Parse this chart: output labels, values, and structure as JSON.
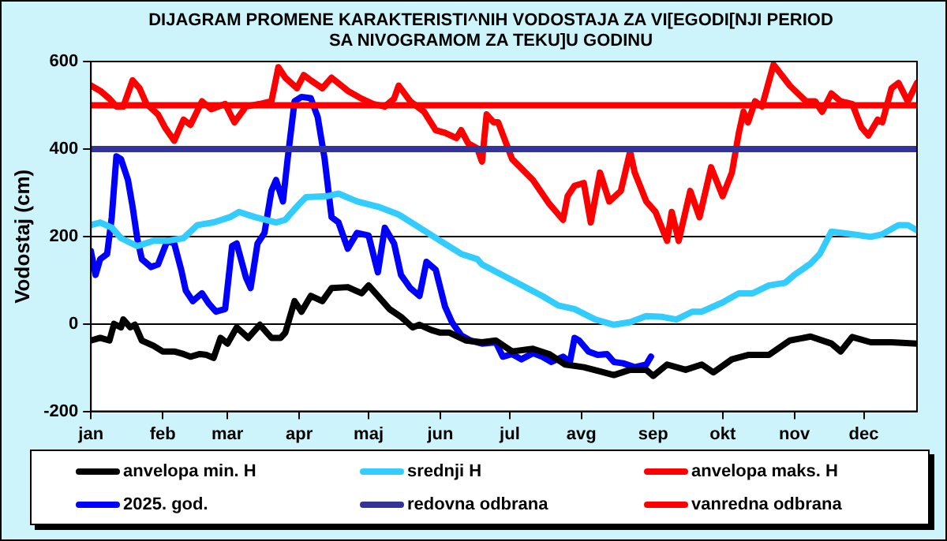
{
  "chart_data": {
    "type": "line",
    "title": "DIJAGRAM PROMENE  KARAKTERISTI^NIH  VODOSTAJA ZA VI[EGODI[NJI PERIOD  SA NIVOGRAMOM ZA TEKU]U  GODINU",
    "ylabel": "Vodostaj (cm)",
    "xlim": [
      "--01-01",
      "--12-24"
    ],
    "xticks": [
      {
        "value": "--01-01",
        "label": "jan"
      },
      {
        "value": "--02-01",
        "label": "feb"
      },
      {
        "value": "--03-01",
        "label": "mar"
      },
      {
        "value": "--04-01",
        "label": "apr"
      },
      {
        "value": "--05-01",
        "label": "maj"
      },
      {
        "value": "--06-01",
        "label": "jun"
      },
      {
        "value": "--07-01",
        "label": "jul"
      },
      {
        "value": "--08-01",
        "label": "avg"
      },
      {
        "value": "--09-01",
        "label": "sep"
      },
      {
        "value": "--10-01",
        "label": "okt"
      },
      {
        "value": "--11-01",
        "label": "nov"
      },
      {
        "value": "--12-01",
        "label": "dec"
      }
    ],
    "ylim": [
      -200,
      600
    ],
    "yticks": [
      -200,
      0,
      200,
      400,
      600
    ],
    "grid": "y",
    "legend": "bottom",
    "marker": "none",
    "line_style": "solid",
    "series": [
      {
        "name": "anvelopa min. H",
        "color": "#000000",
        "x": [
          "--01-01",
          "--01-05",
          "--01-09",
          "--01-11",
          "--01-14",
          "--01-15",
          "--01-18",
          "--01-20",
          "--01-23",
          "--01-28",
          "--02-01",
          "--02-06",
          "--02-10",
          "--02-13",
          "--02-17",
          "--02-20",
          "--02-23",
          "--02-26",
          "--03-01",
          "--03-05",
          "--03-10",
          "--03-15",
          "--03-20",
          "--03-24",
          "--03-26",
          "--03-30",
          "--04-02",
          "--04-06",
          "--04-11",
          "--04-15",
          "--04-22",
          "--04-28",
          "--05-01",
          "--05-05",
          "--05-10",
          "--05-15",
          "--05-20",
          "--05-23",
          "--05-28",
          "--06-01",
          "--06-05",
          "--06-12",
          "--06-19",
          "--06-25",
          "--07-02",
          "--07-11",
          "--07-18",
          "--07-25",
          "--08-02",
          "--08-15",
          "--08-22",
          "--08-29",
          "--09-01",
          "--09-07",
          "--09-15",
          "--09-22",
          "--09-27",
          "--10-05",
          "--10-12",
          "--10-21",
          "--10-30",
          "--11-08",
          "--11-17",
          "--11-21",
          "--11-26",
          "--12-04",
          "--12-13",
          "--12-24"
        ],
        "values": [
          -38,
          -32,
          -38,
          0,
          -8,
          10,
          -8,
          -2,
          -38,
          -50,
          -63,
          -63,
          -69,
          -75,
          -69,
          -71,
          -78,
          -32,
          -45,
          -8,
          -32,
          -2,
          -32,
          -32,
          -20,
          52,
          28,
          64,
          52,
          82,
          84,
          70,
          88,
          64,
          34,
          16,
          -8,
          -2,
          -14,
          -20,
          -20,
          -38,
          -42,
          -38,
          -63,
          -57,
          -69,
          -93,
          -99,
          -117,
          -105,
          -105,
          -119,
          -93,
          -105,
          -93,
          -111,
          -81,
          -71,
          -71,
          -38,
          -29,
          -45,
          -63,
          -30,
          -42,
          -42,
          -45
        ]
      },
      {
        "name": "srednji H",
        "color": "#33ccff",
        "x": [
          "--01-01",
          "--01-05",
          "--01-10",
          "--01-14",
          "--01-21",
          "--01-28",
          "--02-03",
          "--02-10",
          "--02-16",
          "--02-23",
          "--03-02",
          "--03-06",
          "--03-13",
          "--03-22",
          "--03-26",
          "--04-01",
          "--04-04",
          "--04-13",
          "--04-18",
          "--04-26",
          "--05-05",
          "--05-14",
          "--05-23",
          "--06-01",
          "--06-10",
          "--06-17",
          "--06-19",
          "--07-02",
          "--07-15",
          "--07-22",
          "--07-29",
          "--08-07",
          "--08-15",
          "--08-22",
          "--08-29",
          "--09-05",
          "--09-11",
          "--09-18",
          "--09-22",
          "--10-01",
          "--10-08",
          "--10-14",
          "--10-21",
          "--10-28",
          "--11-01",
          "--11-08",
          "--11-12",
          "--11-17",
          "--11-26",
          "--12-04",
          "--12-09",
          "--12-16",
          "--12-20",
          "--12-24"
        ],
        "values": [
          226,
          232,
          220,
          196,
          178,
          190,
          190,
          196,
          226,
          232,
          244,
          256,
          244,
          232,
          238,
          274,
          290,
          292,
          298,
          280,
          268,
          250,
          220,
          190,
          160,
          148,
          136,
          100,
          64,
          42,
          34,
          10,
          -2,
          4,
          18,
          16,
          10,
          28,
          28,
          49,
          70,
          70,
          88,
          94,
          112,
          138,
          160,
          211,
          205,
          199,
          205,
          226,
          226,
          214
        ]
      },
      {
        "name": "anvelopa maks. H",
        "color": "#ff0000",
        "x": [
          "--01-01",
          "--01-05",
          "--01-09",
          "--01-12",
          "--01-15",
          "--01-19",
          "--01-22",
          "--01-25",
          "--01-30",
          "--02-02",
          "--02-06",
          "--02-10",
          "--02-13",
          "--02-18",
          "--02-22",
          "--02-28",
          "--03-04",
          "--03-09",
          "--03-15",
          "--03-20",
          "--03-23",
          "--03-26",
          "--03-31",
          "--04-03",
          "--04-06",
          "--04-11",
          "--04-15",
          "--04-22",
          "--04-28",
          "--05-03",
          "--05-08",
          "--05-12",
          "--05-14",
          "--05-19",
          "--05-25",
          "--05-30",
          "--06-03",
          "--06-08",
          "--06-10",
          "--06-13",
          "--06-17",
          "--06-19",
          "--06-21",
          "--06-24",
          "--06-26",
          "--07-02",
          "--07-11",
          "--07-18",
          "--07-24",
          "--07-26",
          "--07-29",
          "--08-02",
          "--08-05",
          "--08-09",
          "--08-13",
          "--08-18",
          "--08-22",
          "--08-24",
          "--08-29",
          "--09-02",
          "--09-07",
          "--09-09",
          "--09-12",
          "--09-17",
          "--09-21",
          "--09-26",
          "--10-01",
          "--10-05",
          "--10-08",
          "--10-10",
          "--10-12",
          "--10-15",
          "--10-18",
          "--10-23",
          "--10-30",
          "--11-06",
          "--11-10",
          "--11-13",
          "--11-17",
          "--11-21",
          "--11-26",
          "--11-30",
          "--12-03",
          "--12-07",
          "--12-09",
          "--12-13",
          "--12-16",
          "--12-20",
          "--12-24"
        ],
        "values": [
          545,
          533,
          515,
          497,
          497,
          557,
          539,
          503,
          479,
          449,
          419,
          467,
          455,
          509,
          491,
          503,
          461,
          497,
          503,
          509,
          587,
          563,
          539,
          569,
          557,
          539,
          563,
          533,
          515,
          503,
          497,
          515,
          545,
          509,
          485,
          443,
          437,
          425,
          443,
          413,
          401,
          371,
          479,
          461,
          461,
          377,
          329,
          275,
          238,
          292,
          316,
          322,
          232,
          346,
          280,
          304,
          394,
          346,
          280,
          256,
          190,
          256,
          190,
          304,
          244,
          358,
          292,
          346,
          437,
          485,
          461,
          509,
          497,
          593,
          545,
          509,
          509,
          485,
          527,
          509,
          503,
          449,
          431,
          467,
          461,
          539,
          551,
          509,
          551
        ]
      },
      {
        "name": "2025. god.",
        "color": "#0000ff",
        "x": [
          "--01-01",
          "--01-03",
          "--01-05",
          "--01-08",
          "--01-10",
          "--01-12",
          "--01-14",
          "--01-17",
          "--01-19",
          "--01-21",
          "--01-23",
          "--01-27",
          "--01-30",
          "--02-03",
          "--02-06",
          "--02-09",
          "--02-11",
          "--02-14",
          "--02-18",
          "--02-21",
          "--02-24",
          "--02-28",
          "--03-03",
          "--03-05",
          "--03-09",
          "--03-11",
          "--03-14",
          "--03-17",
          "--03-20",
          "--03-22",
          "--03-25",
          "--03-27",
          "--03-30",
          "--04-02",
          "--04-06",
          "--04-09",
          "--04-12",
          "--04-15",
          "--04-18",
          "--04-22",
          "--04-26",
          "--05-01",
          "--05-05",
          "--05-08",
          "--05-12",
          "--05-15",
          "--05-19",
          "--05-23",
          "--05-26",
          "--05-30",
          "--06-03",
          "--06-06",
          "--06-10",
          "--06-14",
          "--06-19",
          "--06-25",
          "--06-28",
          "--07-02",
          "--07-06",
          "--07-11",
          "--07-15",
          "--07-19",
          "--07-24",
          "--07-27",
          "--07-29",
          "--07-31",
          "--08-04",
          "--08-08",
          "--08-12",
          "--08-15",
          "--08-19",
          "--08-24",
          "--08-29",
          "--08-31"
        ],
        "values": [
          166,
          112,
          148,
          160,
          244,
          383,
          377,
          329,
          268,
          196,
          148,
          130,
          136,
          190,
          184,
          124,
          76,
          52,
          70,
          46,
          28,
          34,
          178,
          184,
          106,
          82,
          184,
          208,
          304,
          329,
          280,
          377,
          509,
          519,
          516,
          473,
          377,
          244,
          232,
          172,
          208,
          202,
          118,
          220,
          184,
          112,
          82,
          64,
          142,
          124,
          40,
          4,
          -26,
          -38,
          -45,
          -42,
          -75,
          -69,
          -81,
          -67,
          -75,
          -87,
          -75,
          -87,
          -32,
          -38,
          -63,
          -71,
          -69,
          -87,
          -90,
          -99,
          -93,
          -75
        ]
      }
    ],
    "ref_lines": [
      {
        "axis": "y",
        "value": 400,
        "label": "redovna odbrana",
        "color": "#333399"
      },
      {
        "axis": "y",
        "value": 500,
        "label": "vanredna odbrana",
        "color": "#ff0000"
      }
    ]
  }
}
